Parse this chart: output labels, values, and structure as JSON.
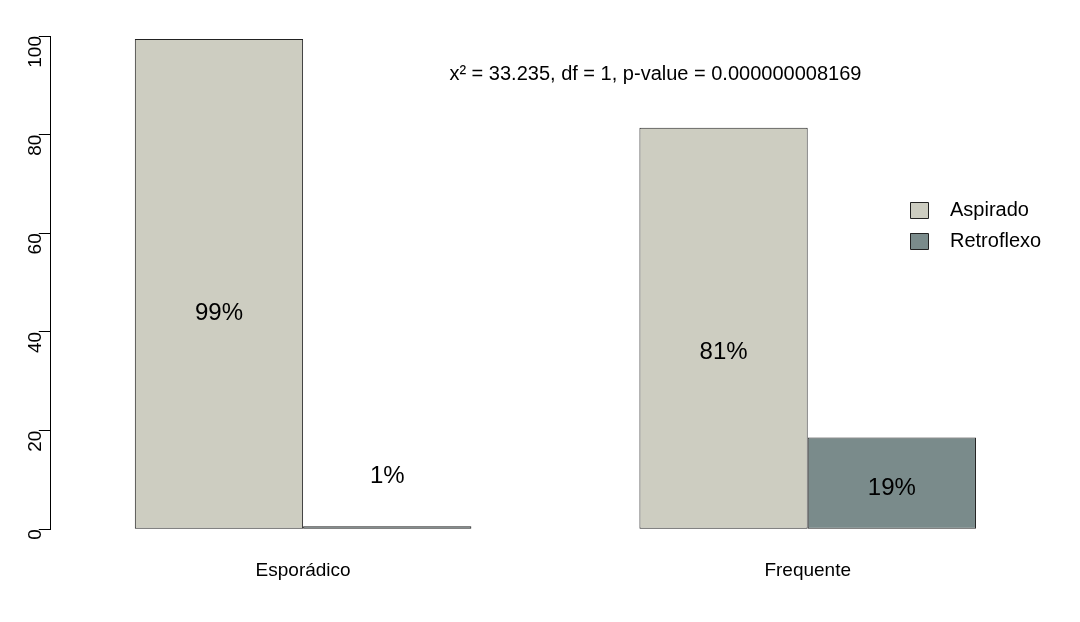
{
  "chart_data": {
    "type": "bar",
    "categories": [
      "Esporádico",
      "Frequente"
    ],
    "series": [
      {
        "name": "Aspirado",
        "color": "#cdcdc1",
        "values": [
          99.4,
          81.4
        ],
        "value_labels": [
          "99%",
          "81%"
        ]
      },
      {
        "name": "Retroflexo",
        "color": "#7a8b8b",
        "values": [
          0.6,
          18.6
        ],
        "value_labels": [
          "1%",
          "19%"
        ]
      }
    ],
    "ylim": [
      0,
      100
    ],
    "yticks": [
      0,
      20,
      40,
      60,
      80,
      100
    ],
    "annotations": [
      "x² = 33.235, df = 1, p-value = 0.000000008169"
    ],
    "legend": "right",
    "grid": false
  }
}
